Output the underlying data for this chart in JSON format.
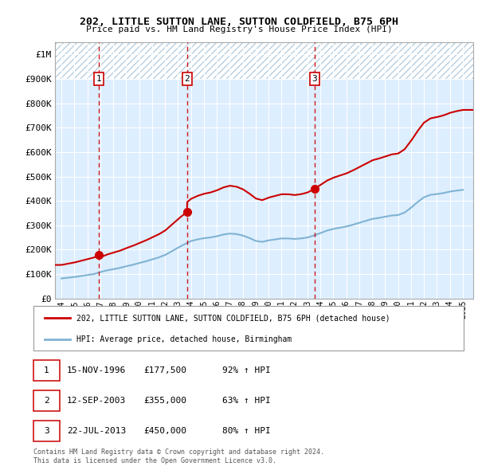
{
  "title1": "202, LITTLE SUTTON LANE, SUTTON COLDFIELD, B75 6PH",
  "title2": "Price paid vs. HM Land Registry's House Price Index (HPI)",
  "ylim": [
    0,
    1050000
  ],
  "xlim_start": 1993.5,
  "xlim_end": 2025.8,
  "yticks": [
    0,
    100000,
    200000,
    300000,
    400000,
    500000,
    600000,
    700000,
    800000,
    900000,
    1000000
  ],
  "ytick_labels": [
    "£0",
    "£100K",
    "£200K",
    "£300K",
    "£400K",
    "£500K",
    "£600K",
    "£700K",
    "£800K",
    "£900K",
    "£1M"
  ],
  "xticks": [
    1994,
    1995,
    1996,
    1997,
    1998,
    1999,
    2000,
    2001,
    2002,
    2003,
    2004,
    2005,
    2006,
    2007,
    2008,
    2009,
    2010,
    2011,
    2012,
    2013,
    2014,
    2015,
    2016,
    2017,
    2018,
    2019,
    2020,
    2021,
    2022,
    2023,
    2024,
    2025
  ],
  "sale_dates": [
    1996.876,
    2003.703,
    2013.554
  ],
  "sale_prices": [
    177500,
    355000,
    450000
  ],
  "sale_labels": [
    "1",
    "2",
    "3"
  ],
  "vline_color": "#cc0000",
  "sale_color": "#cc0000",
  "hpi_color": "#7fb3d3",
  "legend_label_red": "202, LITTLE SUTTON LANE, SUTTON COLDFIELD, B75 6PH (detached house)",
  "legend_label_blue": "HPI: Average price, detached house, Birmingham",
  "table_rows": [
    [
      "1",
      "15-NOV-1996",
      "£177,500",
      "92% ↑ HPI"
    ],
    [
      "2",
      "12-SEP-2003",
      "£355,000",
      "63% ↑ HPI"
    ],
    [
      "3",
      "22-JUL-2013",
      "£450,000",
      "80% ↑ HPI"
    ]
  ],
  "footnote": "Contains HM Land Registry data © Crown copyright and database right 2024.\nThis data is licensed under the Open Government Licence v3.0.",
  "bg_color": "#ddeeff",
  "hatch_color": "#b8cfe0",
  "grid_color": "#ffffff",
  "hpi_years": [
    1994,
    1994.5,
    1995,
    1995.5,
    1996,
    1996.5,
    1997,
    1997.5,
    1998,
    1998.5,
    1999,
    1999.5,
    2000,
    2000.5,
    2001,
    2001.5,
    2002,
    2002.5,
    2003,
    2003.5,
    2004,
    2004.5,
    2005,
    2005.5,
    2006,
    2006.5,
    2007,
    2007.5,
    2008,
    2008.5,
    2009,
    2009.5,
    2010,
    2010.5,
    2011,
    2011.5,
    2012,
    2012.5,
    2013,
    2013.5,
    2014,
    2014.5,
    2015,
    2015.5,
    2016,
    2016.5,
    2017,
    2017.5,
    2018,
    2018.5,
    2019,
    2019.5,
    2020,
    2020.5,
    2021,
    2021.5,
    2022,
    2022.5,
    2023,
    2023.5,
    2024,
    2024.5,
    2025
  ],
  "hpi_values": [
    82000,
    85000,
    88000,
    92000,
    96000,
    100000,
    108000,
    115000,
    120000,
    125000,
    132000,
    138000,
    145000,
    152000,
    160000,
    168000,
    178000,
    193000,
    208000,
    222000,
    235000,
    242000,
    247000,
    250000,
    255000,
    262000,
    266000,
    264000,
    258000,
    248000,
    236000,
    232000,
    238000,
    242000,
    246000,
    246000,
    244000,
    246000,
    250000,
    258000,
    268000,
    278000,
    285000,
    290000,
    295000,
    302000,
    310000,
    318000,
    326000,
    330000,
    335000,
    340000,
    342000,
    352000,
    372000,
    395000,
    415000,
    425000,
    428000,
    432000,
    438000,
    442000,
    445000
  ]
}
